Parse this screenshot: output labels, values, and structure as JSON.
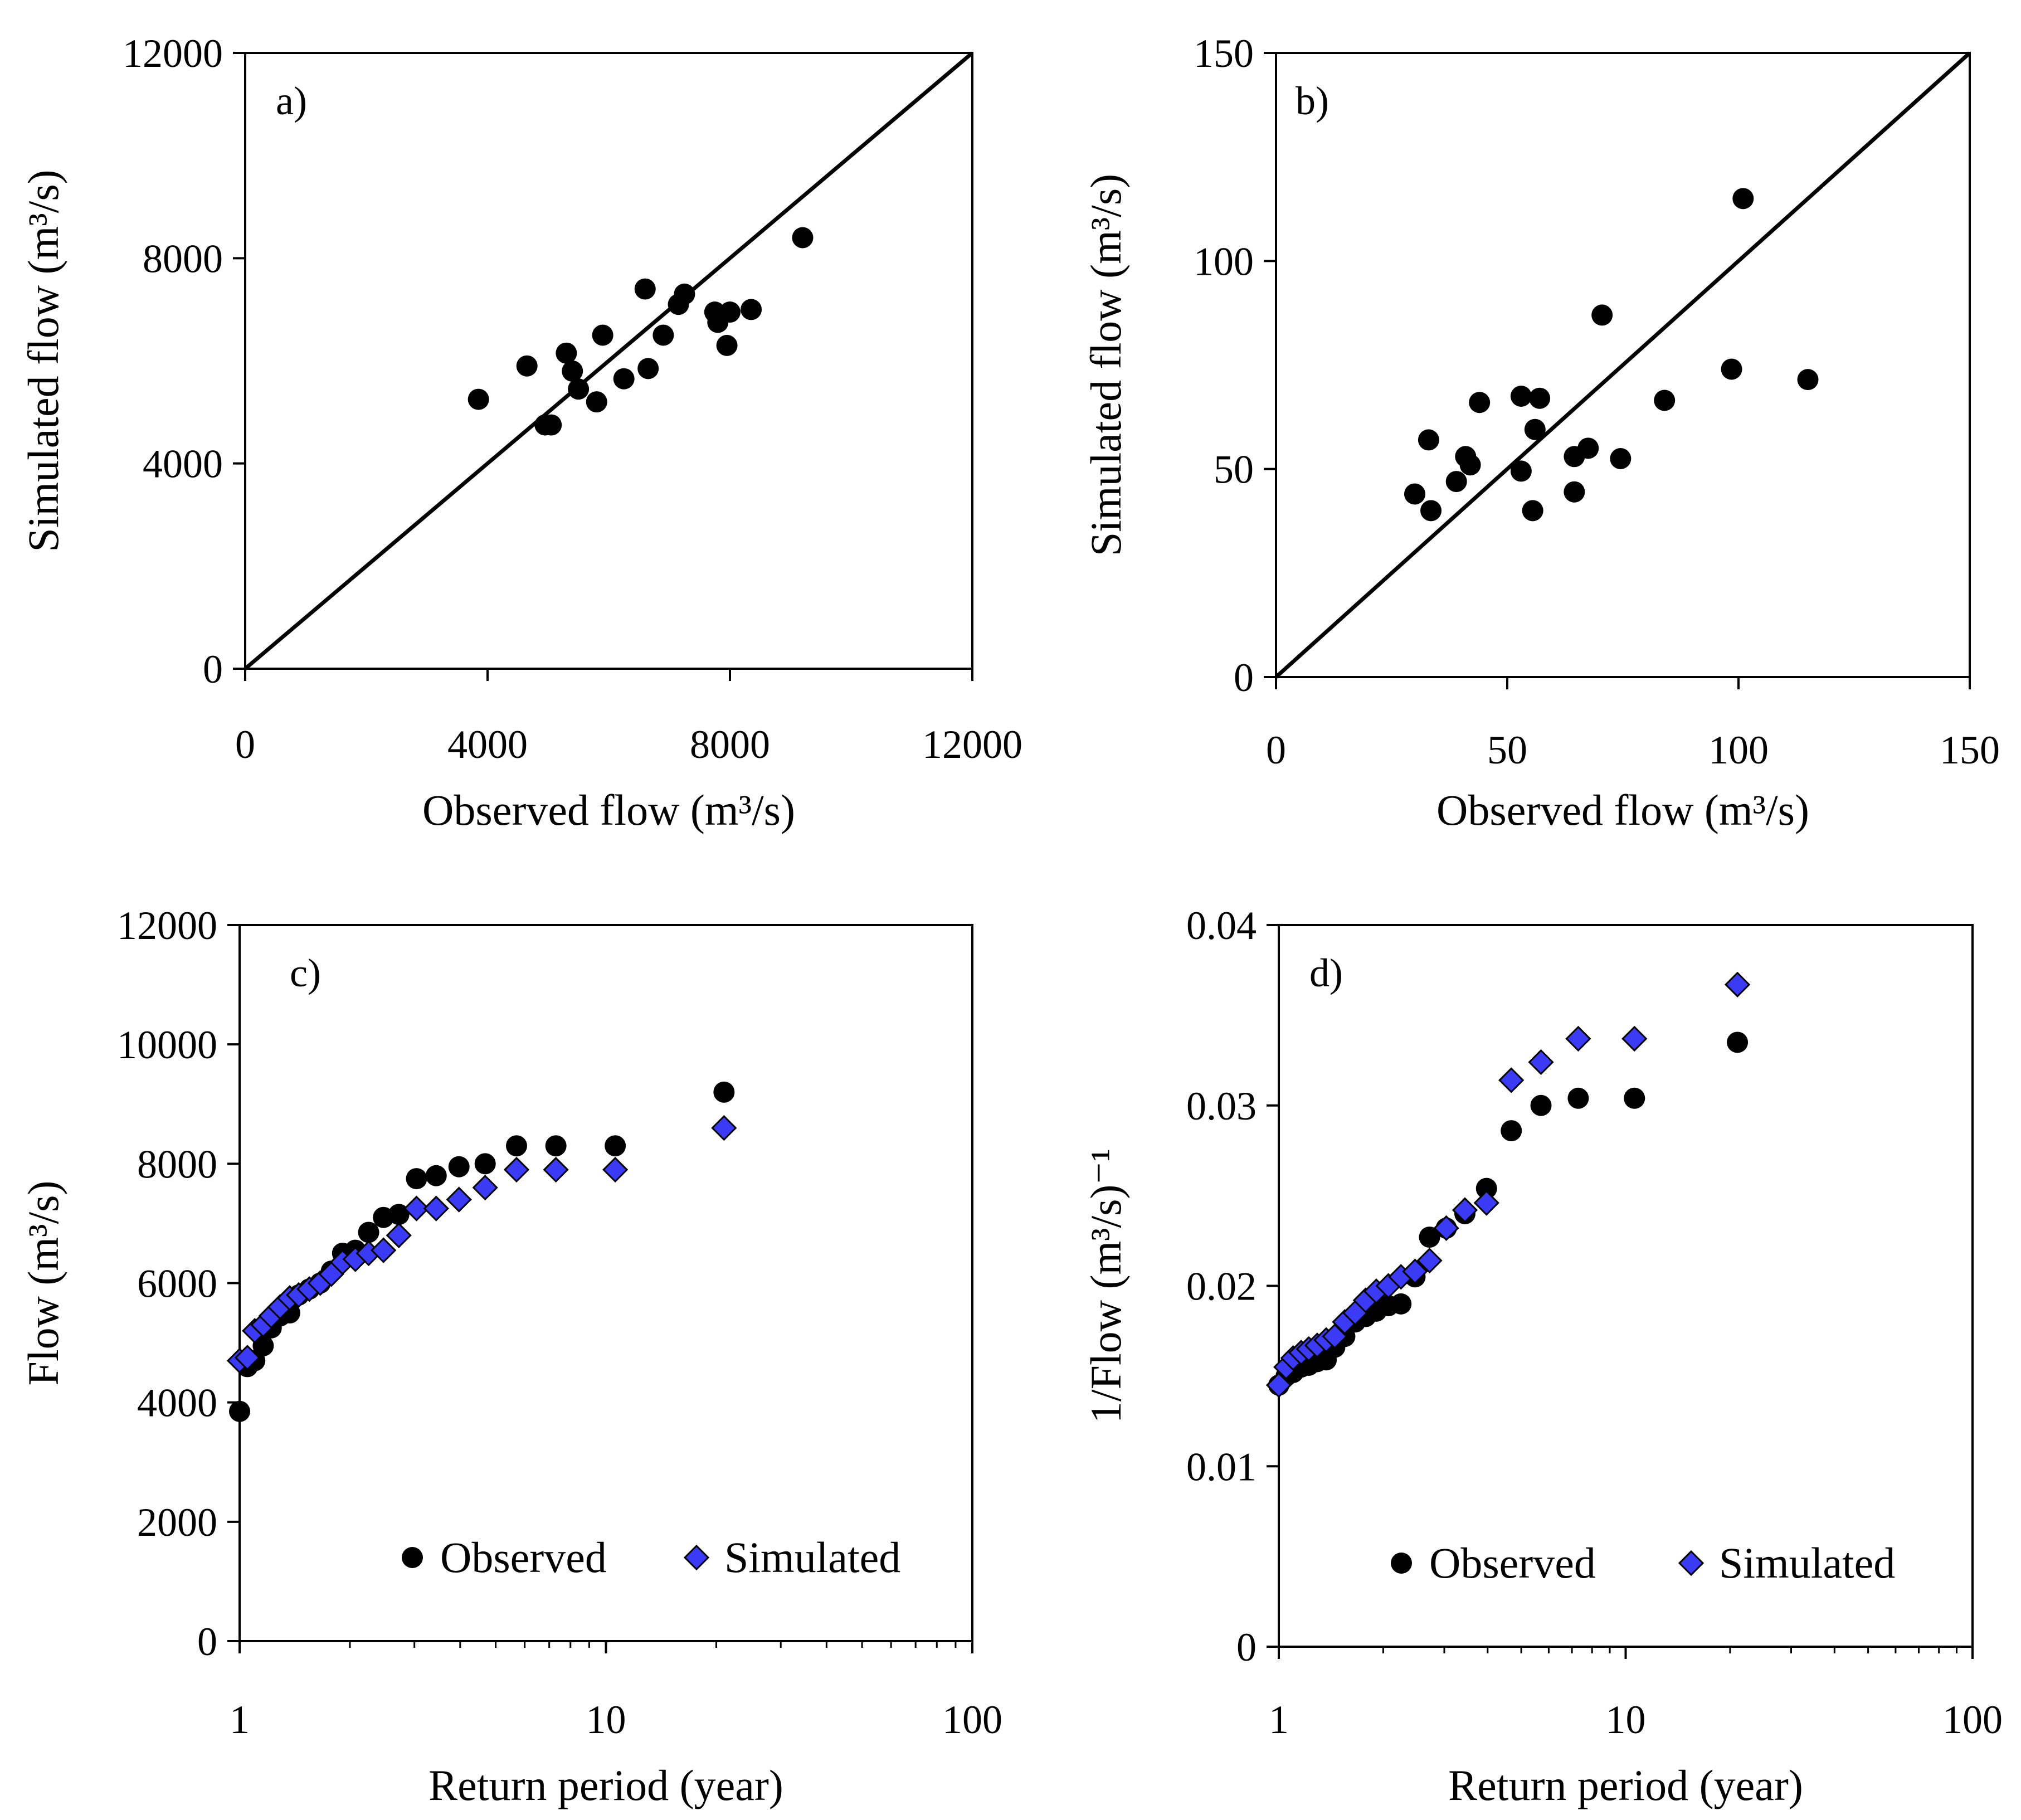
{
  "chart_data": [
    {
      "id": "a",
      "type": "scatter",
      "panel_label": "a)",
      "xlabel": "Observed flow (m³/s)",
      "ylabel": "Simulated flow (m³/s)",
      "xlim": [
        0,
        12000
      ],
      "ylim": [
        0,
        12000
      ],
      "xticks": [
        "0",
        "4000",
        "8000",
        "12000"
      ],
      "yticks": [
        "0",
        "4000",
        "8000",
        "12000"
      ],
      "xtick_values": [
        0,
        4000,
        8000,
        12000
      ],
      "ytick_values": [
        0,
        4000,
        8000,
        12000
      ],
      "reference_line": "1:1",
      "points": [
        {
          "x": 3850,
          "y": 5250
        },
        {
          "x": 4650,
          "y": 5900
        },
        {
          "x": 4950,
          "y": 4750
        },
        {
          "x": 5050,
          "y": 4750
        },
        {
          "x": 5300,
          "y": 6150
        },
        {
          "x": 5400,
          "y": 5800
        },
        {
          "x": 5500,
          "y": 5450
        },
        {
          "x": 5800,
          "y": 5200
        },
        {
          "x": 5900,
          "y": 6500
        },
        {
          "x": 6250,
          "y": 5650
        },
        {
          "x": 6600,
          "y": 7400
        },
        {
          "x": 6650,
          "y": 5850
        },
        {
          "x": 6900,
          "y": 6500
        },
        {
          "x": 7150,
          "y": 7100
        },
        {
          "x": 7250,
          "y": 7300
        },
        {
          "x": 7750,
          "y": 6950
        },
        {
          "x": 7800,
          "y": 6750
        },
        {
          "x": 7950,
          "y": 6300
        },
        {
          "x": 8000,
          "y": 6950
        },
        {
          "x": 8350,
          "y": 7000
        },
        {
          "x": 9200,
          "y": 8400
        }
      ]
    },
    {
      "id": "b",
      "type": "scatter",
      "panel_label": "b)",
      "xlabel": "Observed flow (m³/s)",
      "ylabel": "Simulated flow (m³/s)",
      "xlim": [
        0,
        150
      ],
      "ylim": [
        0,
        150
      ],
      "xticks": [
        "0",
        "50",
        "100",
        "150"
      ],
      "yticks": [
        "0",
        "50",
        "100",
        "150"
      ],
      "xtick_values": [
        0,
        50,
        100,
        150
      ],
      "ytick_values": [
        0,
        50,
        100,
        150
      ],
      "reference_line": "1:1",
      "points": [
        {
          "x": 30,
          "y": 44
        },
        {
          "x": 33,
          "y": 57
        },
        {
          "x": 33.5,
          "y": 40
        },
        {
          "x": 39,
          "y": 47
        },
        {
          "x": 41,
          "y": 53
        },
        {
          "x": 42,
          "y": 51
        },
        {
          "x": 44,
          "y": 66
        },
        {
          "x": 53,
          "y": 67.5
        },
        {
          "x": 53,
          "y": 49.5
        },
        {
          "x": 55.5,
          "y": 40
        },
        {
          "x": 56,
          "y": 59.5
        },
        {
          "x": 57,
          "y": 67
        },
        {
          "x": 64.5,
          "y": 53
        },
        {
          "x": 64.5,
          "y": 44.5
        },
        {
          "x": 67.5,
          "y": 55
        },
        {
          "x": 70.5,
          "y": 87
        },
        {
          "x": 74.5,
          "y": 52.5
        },
        {
          "x": 84,
          "y": 66.5
        },
        {
          "x": 98.5,
          "y": 74
        },
        {
          "x": 101,
          "y": 115
        },
        {
          "x": 115,
          "y": 71.5
        }
      ]
    },
    {
      "id": "c",
      "type": "scatter",
      "panel_label": "c)",
      "xlabel": "Return period (year)",
      "ylabel": "Flow (m³/s)",
      "xscale": "log",
      "xlim": [
        1,
        100
      ],
      "ylim": [
        0,
        12000
      ],
      "xticks": [
        "1",
        "10",
        "100"
      ],
      "yticks": [
        "0",
        "2000",
        "4000",
        "6000",
        "8000",
        "10000",
        "12000"
      ],
      "xtick_values": [
        1,
        10,
        100
      ],
      "ytick_values": [
        0,
        2000,
        4000,
        6000,
        8000,
        10000,
        12000
      ],
      "legend": {
        "placement": "bottom-right",
        "entries": [
          "Observed",
          "Simulated"
        ]
      },
      "x": [
        1.0,
        1.05,
        1.1,
        1.16,
        1.22,
        1.29,
        1.37,
        1.45,
        1.55,
        1.66,
        1.78,
        1.91,
        2.07,
        2.25,
        2.47,
        2.72,
        3.04,
        3.44,
        3.97,
        4.68,
        5.7,
        7.3,
        10.6,
        21.0
      ],
      "series": [
        {
          "name": "Observed",
          "marker": "circle",
          "color": "#000000",
          "values": [
            3850,
            4600,
            4700,
            4950,
            5250,
            5450,
            5500,
            5800,
            5900,
            6000,
            6200,
            6500,
            6550,
            6850,
            7100,
            7150,
            7750,
            7800,
            7950,
            8000,
            8300,
            8300,
            8300,
            9200
          ]
        },
        {
          "name": "Simulated",
          "marker": "diamond",
          "color": "#3b3bf5",
          "values": [
            4700,
            4750,
            5200,
            5300,
            5450,
            5600,
            5750,
            5800,
            5900,
            6000,
            6150,
            6350,
            6400,
            6500,
            6550,
            6800,
            7250,
            7250,
            7400,
            7600,
            7900,
            7900,
            7900,
            8600
          ]
        }
      ]
    },
    {
      "id": "d",
      "type": "scatter",
      "panel_label": "d)",
      "xlabel": "Return period (year)",
      "ylabel": "1/Flow (m³/s)⁻¹",
      "xscale": "log",
      "xlim": [
        1,
        100
      ],
      "ylim": [
        0,
        0.04
      ],
      "xticks": [
        "1",
        "10",
        "100"
      ],
      "yticks": [
        "0",
        "0.01",
        "0.02",
        "0.03",
        "0.04"
      ],
      "xtick_values": [
        1,
        10,
        100
      ],
      "ytick_values": [
        0,
        0.01,
        0.02,
        0.03,
        0.04
      ],
      "legend": {
        "placement": "bottom-right",
        "entries": [
          "Observed",
          "Simulated"
        ]
      },
      "x": [
        1.0,
        1.05,
        1.1,
        1.16,
        1.22,
        1.29,
        1.37,
        1.45,
        1.55,
        1.66,
        1.78,
        1.91,
        2.07,
        2.25,
        2.47,
        2.72,
        3.04,
        3.44,
        3.97,
        4.68,
        5.7,
        7.3,
        10.6,
        21.0
      ],
      "series": [
        {
          "name": "Observed",
          "marker": "circle",
          "color": "#000000",
          "values": [
            0.0145,
            0.015,
            0.0152,
            0.0155,
            0.0156,
            0.0158,
            0.0159,
            0.0166,
            0.0172,
            0.018,
            0.0183,
            0.0186,
            0.0189,
            0.019,
            0.0205,
            0.0227,
            0.0232,
            0.024,
            0.0254,
            0.0286,
            0.03,
            0.0304,
            0.0304,
            0.0335
          ]
        },
        {
          "name": "Simulated",
          "marker": "diamond",
          "color": "#3b3bf5",
          "values": [
            0.0145,
            0.0155,
            0.016,
            0.0163,
            0.0165,
            0.0167,
            0.017,
            0.0172,
            0.018,
            0.0185,
            0.0192,
            0.0197,
            0.02,
            0.0205,
            0.0208,
            0.0214,
            0.0232,
            0.0242,
            0.0246,
            0.0314,
            0.0324,
            0.0337,
            0.0337,
            0.0367
          ]
        }
      ]
    }
  ]
}
